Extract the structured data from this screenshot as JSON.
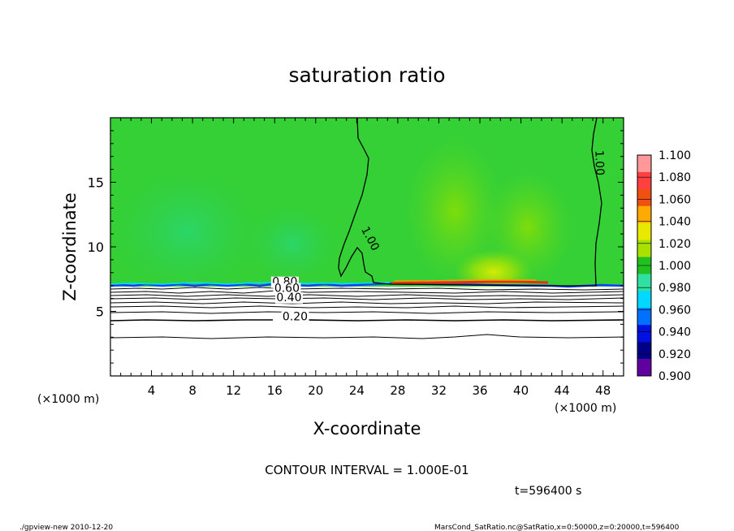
{
  "chart_data": {
    "type": "heatmap",
    "title": "saturation ratio",
    "xlabel": "X-coordinate",
    "ylabel": "Z-coordinate",
    "x_unit_left": "(×1000 m)",
    "x_unit_right": "(×1000 m)",
    "xlim": [
      0,
      50
    ],
    "ylim": [
      0,
      20
    ],
    "x_ticks": [
      4,
      8,
      12,
      16,
      20,
      24,
      28,
      32,
      36,
      40,
      44,
      48
    ],
    "y_ticks": [
      5,
      10,
      15
    ],
    "contour_interval_text": "CONTOUR INTERVAL = 1.000E-01",
    "time_text": "t=596400 s",
    "footer_left": "./gpview-new  2010-12-20",
    "footer_right": "MarsCond_SatRatio.nc@SatRatio,x=0:50000,z=0:20000,t=596400",
    "colorbar": {
      "levels": [
        1.1,
        1.08,
        1.06,
        1.04,
        1.02,
        1.0,
        0.98,
        0.96,
        0.94,
        0.92,
        0.9
      ],
      "labels": [
        "1.100",
        "1.080",
        "1.060",
        "1.040",
        "1.020",
        "1.000",
        "0.980",
        "0.960",
        "0.940",
        "0.920",
        "0.900"
      ],
      "colors": [
        "#ff9999",
        "#ff4040",
        "#f05010",
        "#ffaa00",
        "#e8e800",
        "#a8e000",
        "#20c020",
        "#30e0a0",
        "#00d8ff",
        "#0070ff",
        "#0010e0",
        "#000088",
        "#6000a0"
      ]
    },
    "contour_labels": [
      {
        "text": "1.00",
        "x": 25.0,
        "z": 10.5
      },
      {
        "text": "1.00",
        "x": 47.3,
        "z": 16.5
      },
      {
        "text": "0.80",
        "x": 17.0,
        "z": 7.0
      },
      {
        "text": "0.60",
        "x": 17.2,
        "z": 6.5
      },
      {
        "text": "0.40",
        "x": 17.4,
        "z": 5.8
      },
      {
        "text": "0.20",
        "x": 18.0,
        "z": 4.3
      }
    ],
    "fields": {
      "upper_layer_value": "≈1.00–1.02",
      "lower_layer_value": "0.0–0.9"
    }
  }
}
